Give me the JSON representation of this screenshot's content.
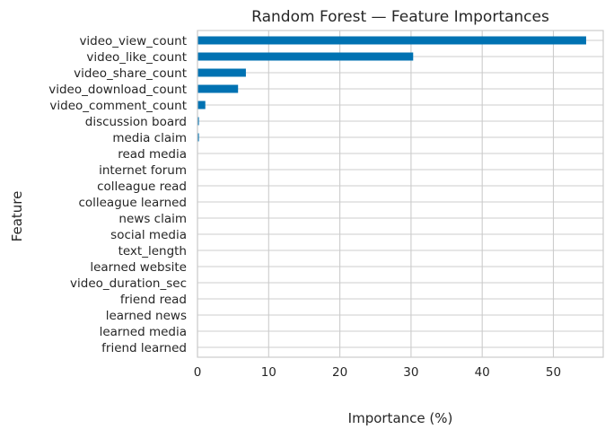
{
  "chart_data": {
    "type": "bar",
    "orientation": "horizontal",
    "title": "Random Forest — Feature Importances",
    "xlabel": "Importance (%)",
    "ylabel": "Feature",
    "xlim": [
      0,
      57
    ],
    "xticks": [
      0,
      10,
      20,
      30,
      40,
      50
    ],
    "grid": true,
    "bar_color": "#0072b2",
    "categories": [
      "video_view_count",
      "video_like_count",
      "video_share_count",
      "video_download_count",
      "video_comment_count",
      "discussion board",
      "media claim",
      "read media",
      "internet forum",
      "colleague read",
      "colleague learned",
      "news claim",
      "social media",
      "text_length",
      "learned website",
      "video_duration_sec",
      "friend read",
      "learned news",
      "learned media",
      "friend learned"
    ],
    "values": [
      54.6,
      30.3,
      6.8,
      5.7,
      1.1,
      0.2,
      0.2,
      0.05,
      0.05,
      0.04,
      0.04,
      0.03,
      0.03,
      0.03,
      0.02,
      0.02,
      0.02,
      0.02,
      0.02,
      0.02
    ]
  }
}
